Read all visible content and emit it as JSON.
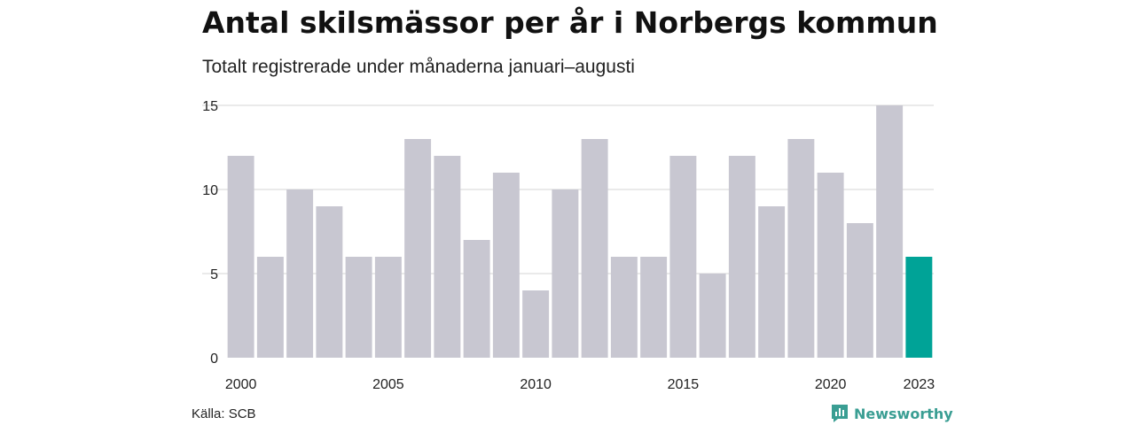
{
  "title": "Antal skilsmässor per år i Norbergs kommun",
  "subtitle": "Totalt registrerade under månaderna januari–augusti",
  "source": "Källa: SCB",
  "brand": "Newsworthy",
  "colors": {
    "bar": "#c8c7d1",
    "highlight": "#00a397",
    "grid": "#dddddd",
    "brand": "#3a9e93"
  },
  "chart_data": {
    "type": "bar",
    "title": "Antal skilsmässor per år i Norbergs kommun",
    "subtitle": "Totalt registrerade under månaderna januari–augusti",
    "xlabel": "",
    "ylabel": "",
    "categories": [
      2000,
      2001,
      2002,
      2003,
      2004,
      2005,
      2006,
      2007,
      2008,
      2009,
      2010,
      2011,
      2012,
      2013,
      2014,
      2015,
      2016,
      2017,
      2018,
      2019,
      2020,
      2021,
      2022,
      2023
    ],
    "values": [
      12,
      6,
      10,
      9,
      6,
      6,
      13,
      12,
      7,
      11,
      4,
      10,
      13,
      6,
      6,
      12,
      5,
      12,
      9,
      13,
      11,
      8,
      15,
      6
    ],
    "highlight_category": 2023,
    "ylim": [
      0,
      15
    ],
    "yticks": [
      0,
      5,
      10,
      15
    ],
    "xtick_labels": [
      "2000",
      "2005",
      "2010",
      "2015",
      "2020",
      "2023"
    ],
    "grid": "horizontal",
    "legend": "none"
  }
}
